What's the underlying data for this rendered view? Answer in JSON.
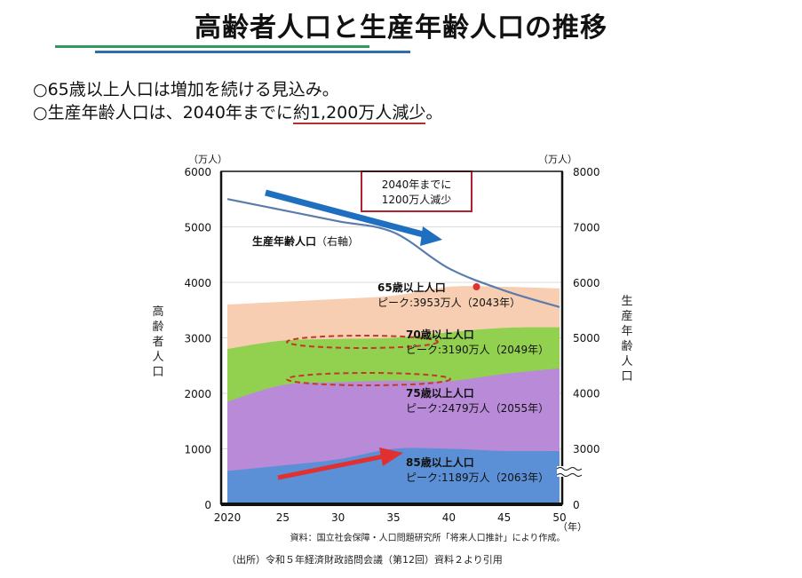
{
  "title": "高齢者人口と生産年齢人口の推移",
  "bullets": {
    "line1": "○65歳以上人口は増加を続ける見込み。",
    "line2_pre": "○生産年齢人口は、2040年までに",
    "line2_under": "約1,200万人減少",
    "line2_post": "。"
  },
  "colors": {
    "title_rule_green": "#2e9a5b",
    "title_rule_blue": "#2f6ea8",
    "age65": "#f8ceb2",
    "age70": "#92d050",
    "age75": "#b88ad8",
    "age85": "#5b8fd6",
    "working_line": "#5a7cac",
    "trend_arrow": "#1f6fc0",
    "red": "#e03030",
    "dashed": "#c0392b"
  },
  "chart_data": {
    "type": "area",
    "title": "",
    "x": [
      2020,
      2025,
      2030,
      2035,
      2040,
      2045,
      2050
    ],
    "xlabel": "（年）",
    "x_tick_labels": [
      "2020",
      "25",
      "30",
      "35",
      "40",
      "45",
      "50"
    ],
    "left_axis": {
      "label": "高齢者人口",
      "unit": "（万人）",
      "range": [
        0,
        6000
      ],
      "ticks": [
        "0",
        "1000",
        "2000",
        "3000",
        "4000",
        "5000",
        "6000"
      ]
    },
    "right_axis": {
      "label": "生産年齢人口",
      "unit": "（万人）",
      "range": [
        0,
        8000
      ],
      "axis_break": true,
      "ticks": [
        "0",
        "3000",
        "4000",
        "5000",
        "6000",
        "7000",
        "8000"
      ]
    },
    "grid": true,
    "series": [
      {
        "name": "65歳以上人口",
        "axis": "left",
        "kind": "area",
        "values": [
          3600,
          3650,
          3700,
          3760,
          3920,
          3920,
          3890
        ],
        "peak_label": "ピーク:3953万人（2043年）",
        "peak_value": 3953,
        "peak_year": 2043
      },
      {
        "name": "70歳以上人口",
        "axis": "left",
        "kind": "area",
        "values": [
          2800,
          2950,
          2980,
          3000,
          3100,
          3180,
          3190
        ],
        "peak_label": "ピーク:3190万人（2049年）",
        "peak_value": 3190,
        "peak_year": 2049
      },
      {
        "name": "75歳以上人口",
        "axis": "left",
        "kind": "area",
        "values": [
          1850,
          2150,
          2200,
          2230,
          2220,
          2350,
          2450
        ],
        "peak_label": "ピーク:2479万人（2055年）",
        "peak_value": 2479,
        "peak_year": 2055
      },
      {
        "name": "85歳以上人口",
        "axis": "left",
        "kind": "area",
        "values": [
          600,
          700,
          810,
          1000,
          1000,
          960,
          960
        ],
        "peak_label": "ピーク:1189万人（2063年）",
        "peak_value": 1189,
        "peak_year": 2063
      },
      {
        "name": "生産年齢人口",
        "label": "生産年齢人口",
        "label_suffix": "（右軸）",
        "axis": "right",
        "kind": "line",
        "values": [
          7500,
          7300,
          7100,
          6900,
          6250,
          5850,
          5550
        ]
      }
    ],
    "annotations": {
      "box_line1": "2040年までに",
      "box_line2": "1200万人減少"
    }
  },
  "footer": {
    "source": "資料：国立社会保障・人口問題研究所「将来人口推計」により作成。",
    "citation": "（出所）令和５年経済財政諮問会議（第12回）資料２より引用"
  }
}
